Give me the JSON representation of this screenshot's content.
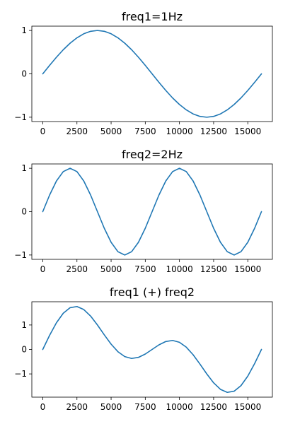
{
  "colors": {
    "line": "#1f77b4",
    "axes": "#000000",
    "background": "#ffffff"
  },
  "chart_data": [
    {
      "type": "line",
      "title": "freq1=1Hz",
      "xlabel": "",
      "ylabel": "",
      "xlim": [
        -800,
        16800
      ],
      "ylim": [
        -1.1,
        1.1
      ],
      "x_ticks": [
        0,
        2500,
        5000,
        7500,
        10000,
        12500,
        15000
      ],
      "x_tick_labels": [
        "0",
        "2500",
        "5000",
        "7500",
        "10000",
        "12500",
        "15000"
      ],
      "y_ticks": [
        -1,
        0,
        1
      ],
      "y_tick_labels": [
        "−1",
        "0",
        "1"
      ],
      "grid": false,
      "series": [
        {
          "x": [
            0,
            500,
            1000,
            1500,
            2000,
            2500,
            3000,
            3500,
            4000,
            4500,
            5000,
            5500,
            6000,
            6500,
            7000,
            7500,
            8000,
            8500,
            9000,
            9500,
            10000,
            10500,
            11000,
            11500,
            12000,
            12500,
            13000,
            13500,
            14000,
            14500,
            15000,
            15500,
            16000
          ],
          "y": [
            0.0,
            0.195,
            0.383,
            0.556,
            0.707,
            0.831,
            0.924,
            0.981,
            1.0,
            0.981,
            0.924,
            0.831,
            0.707,
            0.556,
            0.383,
            0.195,
            0.0,
            -0.195,
            -0.383,
            -0.556,
            -0.707,
            -0.831,
            -0.924,
            -0.981,
            -1.0,
            -0.981,
            -0.924,
            -0.831,
            -0.707,
            -0.556,
            -0.383,
            -0.195,
            0.0
          ]
        }
      ]
    },
    {
      "type": "line",
      "title": "freq2=2Hz",
      "xlabel": "",
      "ylabel": "",
      "xlim": [
        -800,
        16800
      ],
      "ylim": [
        -1.1,
        1.1
      ],
      "x_ticks": [
        0,
        2500,
        5000,
        7500,
        10000,
        12500,
        15000
      ],
      "x_tick_labels": [
        "0",
        "2500",
        "5000",
        "7500",
        "10000",
        "12500",
        "15000"
      ],
      "y_ticks": [
        -1,
        0,
        1
      ],
      "y_tick_labels": [
        "−1",
        "0",
        "1"
      ],
      "grid": false,
      "series": [
        {
          "x": [
            0,
            500,
            1000,
            1500,
            2000,
            2500,
            3000,
            3500,
            4000,
            4500,
            5000,
            5500,
            6000,
            6500,
            7000,
            7500,
            8000,
            8500,
            9000,
            9500,
            10000,
            10500,
            11000,
            11500,
            12000,
            12500,
            13000,
            13500,
            14000,
            14500,
            15000,
            15500,
            16000
          ],
          "y": [
            0.0,
            0.383,
            0.707,
            0.924,
            1.0,
            0.924,
            0.707,
            0.383,
            0.0,
            -0.383,
            -0.707,
            -0.924,
            -1.0,
            -0.924,
            -0.707,
            -0.383,
            0.0,
            0.383,
            0.707,
            0.924,
            1.0,
            0.924,
            0.707,
            0.383,
            0.0,
            -0.383,
            -0.707,
            -0.924,
            -1.0,
            -0.924,
            -0.707,
            -0.383,
            0.0
          ]
        }
      ]
    },
    {
      "type": "line",
      "title": "freq1 (+) freq2",
      "xlabel": "",
      "ylabel": "",
      "xlim": [
        -800,
        16800
      ],
      "ylim": [
        -1.95,
        1.95
      ],
      "x_ticks": [
        0,
        2500,
        5000,
        7500,
        10000,
        12500,
        15000
      ],
      "x_tick_labels": [
        "0",
        "2500",
        "5000",
        "7500",
        "10000",
        "12500",
        "15000"
      ],
      "y_ticks": [
        -1,
        0,
        1
      ],
      "y_tick_labels": [
        "−1",
        "0",
        "1"
      ],
      "grid": false,
      "series": [
        {
          "x": [
            0,
            500,
            1000,
            1500,
            2000,
            2500,
            3000,
            3500,
            4000,
            4500,
            5000,
            5500,
            6000,
            6500,
            7000,
            7500,
            8000,
            8500,
            9000,
            9500,
            10000,
            10500,
            11000,
            11500,
            12000,
            12500,
            13000,
            13500,
            14000,
            14500,
            15000,
            15500,
            16000
          ],
          "y": [
            0.0,
            0.578,
            1.09,
            1.48,
            1.707,
            1.755,
            1.631,
            1.364,
            1.0,
            0.598,
            0.217,
            -0.093,
            -0.293,
            -0.368,
            -0.324,
            -0.188,
            0.0,
            0.188,
            0.324,
            0.368,
            0.293,
            0.093,
            -0.217,
            -0.598,
            -1.0,
            -1.364,
            -1.631,
            -1.755,
            -1.707,
            -1.48,
            -1.09,
            -0.578,
            0.0
          ]
        }
      ]
    }
  ]
}
